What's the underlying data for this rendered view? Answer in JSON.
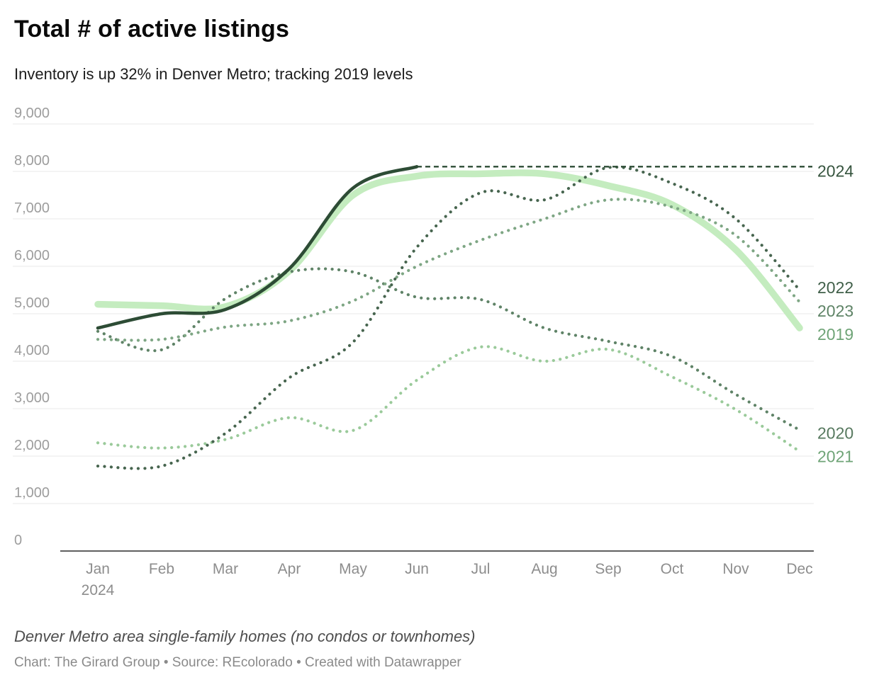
{
  "header": {
    "title": "Total # of active listings",
    "subtitle": "Inventory is up 32% in Denver Metro; tracking 2019 levels"
  },
  "footer": {
    "note": "Denver Metro area single-family homes (no condos or townhomes)",
    "credit": "Chart: The Girard Group • Source: REcolorado • Created with Datawrapper"
  },
  "chart_data": {
    "type": "line",
    "title": "Total # of active listings",
    "months": [
      "Jan",
      "Feb",
      "Mar",
      "Apr",
      "May",
      "Jun",
      "Jul",
      "Aug",
      "Sep",
      "Oct",
      "Nov",
      "Dec"
    ],
    "first_month_sub_label": "2024",
    "ylim": [
      0,
      9000
    ],
    "y_ticks": [
      0,
      1000,
      2000,
      3000,
      4000,
      5000,
      6000,
      7000,
      8000,
      9000
    ],
    "y_tick_labels": [
      "0",
      "1,000",
      "2,000",
      "3,000",
      "4,000",
      "5,000",
      "6,000",
      "7,000",
      "8,000",
      "9,000"
    ],
    "grid": true,
    "legend_position": "right-edge-labels",
    "colors": {
      "grid": "#e8e8e8",
      "axis": "#2b2b2b",
      "y_tick_text": "#9d9d9d",
      "x_tick_text": "#8d8d8d"
    },
    "series": [
      {
        "name": "2019",
        "label": "2019",
        "style": "thick",
        "color": "#c4ecbf",
        "label_color": "#6fa477",
        "values": [
          5200,
          5170,
          5150,
          5900,
          7500,
          7900,
          7950,
          7950,
          7700,
          7300,
          6350,
          4700
        ]
      },
      {
        "name": "2020",
        "label": "2020",
        "style": "dotted",
        "color": "#5f8367",
        "label_color": "#57795f",
        "values": [
          4630,
          4240,
          5320,
          5880,
          5880,
          5350,
          5300,
          4700,
          4420,
          4100,
          3300,
          2550
        ]
      },
      {
        "name": "2021",
        "label": "2021",
        "style": "dotted",
        "color": "#9aca9a",
        "label_color": "#6fa477",
        "values": [
          2280,
          2170,
          2350,
          2810,
          2540,
          3600,
          4300,
          4000,
          4250,
          3670,
          2980,
          2100
        ]
      },
      {
        "name": "2023",
        "label": "2023",
        "style": "dotted",
        "color": "#7ea684",
        "label_color": "#5f8467",
        "values": [
          4460,
          4460,
          4720,
          4850,
          5270,
          6000,
          6550,
          7000,
          7400,
          7250,
          6650,
          5250
        ]
      },
      {
        "name": "2022",
        "label": "2022",
        "style": "dotted",
        "color": "#47654f",
        "label_color": "#41604a",
        "values": [
          1790,
          1790,
          2480,
          3650,
          4400,
          6400,
          7550,
          7400,
          8080,
          7750,
          7000,
          5500
        ]
      },
      {
        "name": "2024-projection",
        "label": "2024",
        "style": "dashed",
        "color": "#2d4c35",
        "label_color": "#36543e",
        "extend": true,
        "values": [
          null,
          null,
          null,
          null,
          null,
          8100,
          8100,
          8100,
          8100,
          8100,
          8100,
          8100
        ]
      },
      {
        "name": "2024",
        "label": null,
        "style": "solid",
        "color": "#2d4c35",
        "label_color": "#36543e",
        "values": [
          4700,
          5000,
          5090,
          5950,
          7650,
          8100,
          null,
          null,
          null,
          null,
          null,
          null
        ]
      }
    ]
  }
}
